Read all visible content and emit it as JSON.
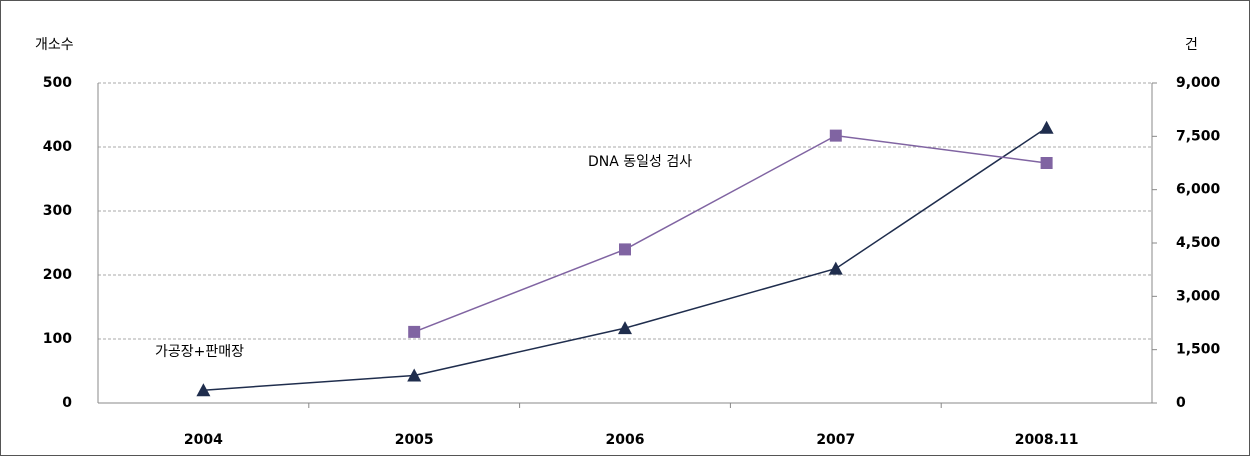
{
  "chart_data": {
    "type": "line",
    "y_label": "개소수",
    "y2_label": "건",
    "categories": [
      "2004",
      "2005",
      "2006",
      "2007",
      "2008.11"
    ],
    "series": [
      {
        "name": "가공장+판매장",
        "color": "#1f2d4d",
        "marker": "triangle",
        "values": [
          20,
          43,
          117,
          210,
          430
        ]
      },
      {
        "name": "DNA 동일성 검사",
        "color": "#8064a2",
        "marker": "square",
        "axis": "y2",
        "values": [
          null,
          2000,
          4320,
          7520,
          6750
        ]
      }
    ],
    "ylim": [
      0,
      500
    ],
    "yticks": [
      0,
      100,
      200,
      300,
      400,
      500
    ],
    "y2lim": [
      0,
      9000
    ],
    "y2ticks": [
      0,
      {
        "value": 1500,
        "label": "1,500"
      },
      {
        "value": 3000,
        "label": "3,000"
      },
      {
        "value": 4500,
        "label": "4,500"
      },
      {
        "value": 6000,
        "label": "6,000"
      },
      {
        "value": 7500,
        "label": "7,500"
      },
      {
        "value": 9000,
        "label": "9,000"
      }
    ],
    "grid": true
  }
}
